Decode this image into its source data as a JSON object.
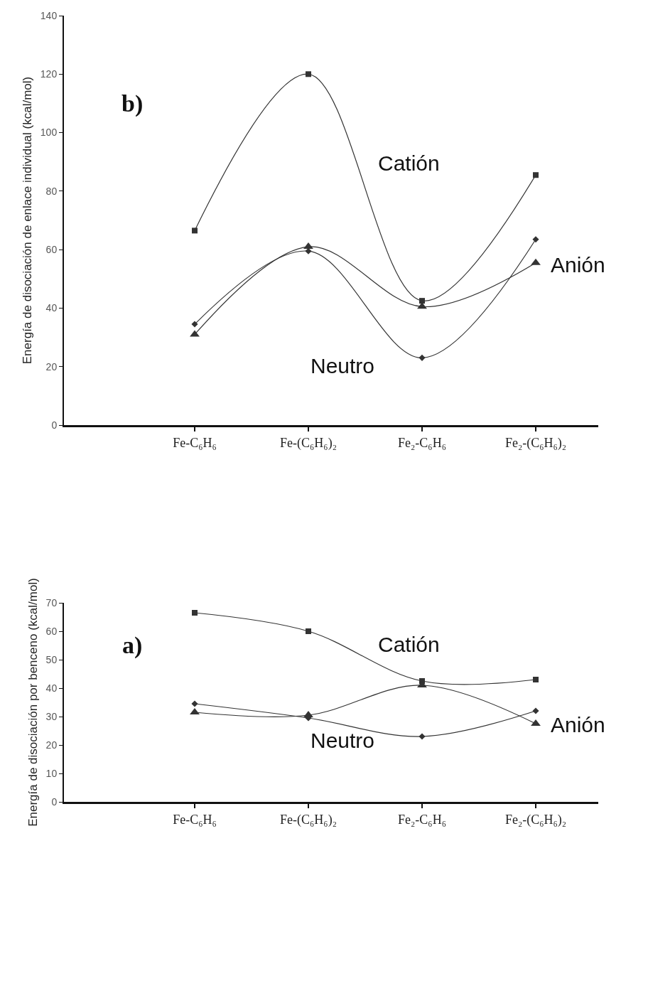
{
  "chart_data": [
    {
      "type": "line",
      "title": "b)",
      "ylabel": "Energía de disociación de enlace individual (kcal/mol)",
      "categories": [
        "Fe-C₆H₆",
        "Fe-(C₆H₆)₂",
        "Fe₂-C₆H₆",
        "Fe₂-(C₆H₆)₂"
      ],
      "ylim": [
        0,
        140
      ],
      "yticks": [
        0,
        20,
        40,
        60,
        80,
        100,
        120,
        140
      ],
      "legend": false,
      "series": [
        {
          "name": "Catión",
          "color": "#333333",
          "marker": "square",
          "values": [
            66.5,
            120,
            42.5,
            85.5
          ]
        },
        {
          "name": "Anión",
          "color": "#333333",
          "marker": "triangle",
          "values": [
            31,
            61,
            40.5,
            55.5
          ]
        },
        {
          "name": "Neutro",
          "color": "#333333",
          "marker": "diamond",
          "values": [
            34.5,
            59.5,
            23,
            63.5
          ]
        }
      ]
    },
    {
      "type": "line",
      "title": "a)",
      "ylabel": "Energía de disociación por benceno (kcal/mol)",
      "categories": [
        "Fe-C₆H₆",
        "Fe-(C₆H₆)₂",
        "Fe₂-C₆H₆",
        "Fe₂-(C₆H₆)₂"
      ],
      "ylim": [
        0,
        70
      ],
      "yticks": [
        0,
        10,
        20,
        30,
        40,
        50,
        60,
        70
      ],
      "legend": false,
      "series": [
        {
          "name": "Catión",
          "color": "#333333",
          "marker": "square",
          "values": [
            66.5,
            60,
            42.5,
            43
          ]
        },
        {
          "name": "Anión",
          "color": "#333333",
          "marker": "triangle",
          "values": [
            31.5,
            30.5,
            41,
            27.5
          ]
        },
        {
          "name": "Neutro",
          "color": "#333333",
          "marker": "diamond",
          "values": [
            34.5,
            29.5,
            23,
            32
          ]
        }
      ]
    }
  ]
}
